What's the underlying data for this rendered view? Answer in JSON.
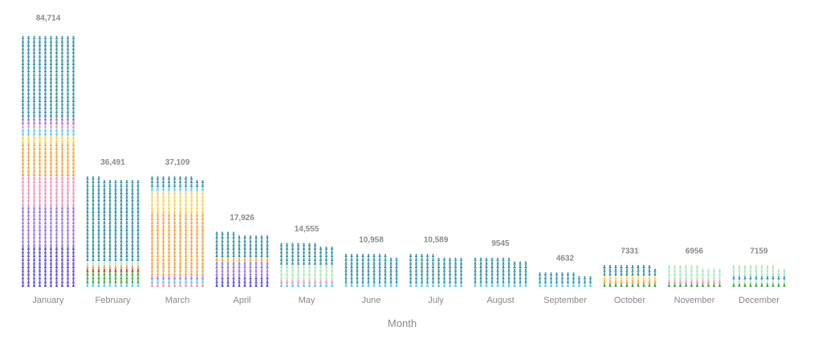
{
  "chart_data": {
    "type": "bar",
    "style": "stacked pictogram (isotype) bars of small person icons",
    "xlabel": "Month",
    "ylabel": "",
    "legend": "none",
    "grid": false,
    "categories": [
      "January",
      "February",
      "March",
      "April",
      "May",
      "June",
      "July",
      "August",
      "September",
      "October",
      "November",
      "December"
    ],
    "values": [
      84714,
      36491,
      37109,
      17926,
      14555,
      10958,
      10589,
      9545,
      4632,
      7331,
      6956,
      7159
    ],
    "value_labels": [
      "84,714",
      "36,491",
      "37,109",
      "17,926",
      "14,555",
      "10,958",
      "10,589",
      "9545",
      "4632",
      "7331",
      "6956",
      "7159"
    ],
    "series_colors": {
      "teal": "#2e8fa3",
      "sky": "#5ac8e8",
      "green": "#3aa83a",
      "mint": "#a8e8b8",
      "red": "#c0392b",
      "maroon": "#8b1a1a",
      "orange": "#f7a13a",
      "yellow": "#f9d24a",
      "pink": "#f48fb1",
      "purple": "#9b72e0",
      "indigo": "#5b4bd6"
    },
    "stack_composition_bottom_to_top": [
      [
        [
          "indigo",
          0.16
        ],
        [
          "purple",
          0.16
        ],
        [
          "pink",
          0.12
        ],
        [
          "orange",
          0.13
        ],
        [
          "yellow",
          0.02
        ],
        [
          "sky",
          0.03
        ],
        [
          "pink",
          0.02
        ],
        [
          "purple",
          0.02
        ],
        [
          "teal",
          0.34
        ]
      ],
      [
        [
          "sky",
          0.02
        ],
        [
          "green",
          0.12
        ],
        [
          "red",
          0.03
        ],
        [
          "orange",
          0.02
        ],
        [
          "yellow",
          0.02
        ],
        [
          "mint",
          0.02
        ],
        [
          "maroon",
          0.02
        ],
        [
          "teal",
          0.75
        ]
      ],
      [
        [
          "pink",
          0.04
        ],
        [
          "sky",
          0.04
        ],
        [
          "purple",
          0.03
        ],
        [
          "orange",
          0.57
        ],
        [
          "yellow",
          0.17
        ],
        [
          "sky",
          0.05
        ],
        [
          "teal",
          0.1
        ]
      ],
      [
        [
          "indigo",
          0.18
        ],
        [
          "purple",
          0.3
        ],
        [
          "orange",
          0.03
        ],
        [
          "teal",
          0.49
        ]
      ],
      [
        [
          "sky",
          0.1
        ],
        [
          "pink",
          0.06
        ],
        [
          "mint",
          0.3
        ],
        [
          "teal",
          0.54
        ]
      ],
      [
        [
          "sky",
          0.08
        ],
        [
          "green",
          0.04
        ],
        [
          "teal",
          0.88
        ]
      ],
      [
        [
          "sky",
          0.08
        ],
        [
          "maroon",
          0.04
        ],
        [
          "teal",
          0.88
        ]
      ],
      [
        [
          "sky",
          0.08
        ],
        [
          "green",
          0.05
        ],
        [
          "teal",
          0.87
        ]
      ],
      [
        [
          "sky",
          0.15
        ],
        [
          "pink",
          0.05
        ],
        [
          "teal",
          0.8
        ]
      ],
      [
        [
          "green",
          0.1
        ],
        [
          "pink",
          0.1
        ],
        [
          "orange",
          0.14
        ],
        [
          "yellow",
          0.12
        ],
        [
          "mint",
          0.1
        ],
        [
          "teal",
          0.44
        ]
      ],
      [
        [
          "green",
          0.1
        ],
        [
          "purple",
          0.1
        ],
        [
          "pink",
          0.12
        ],
        [
          "mint",
          0.68
        ]
      ],
      [
        [
          "green",
          0.16
        ],
        [
          "maroon",
          0.06
        ],
        [
          "mint",
          0.1
        ],
        [
          "teal",
          0.2
        ],
        [
          "mint",
          0.48
        ]
      ]
    ]
  }
}
